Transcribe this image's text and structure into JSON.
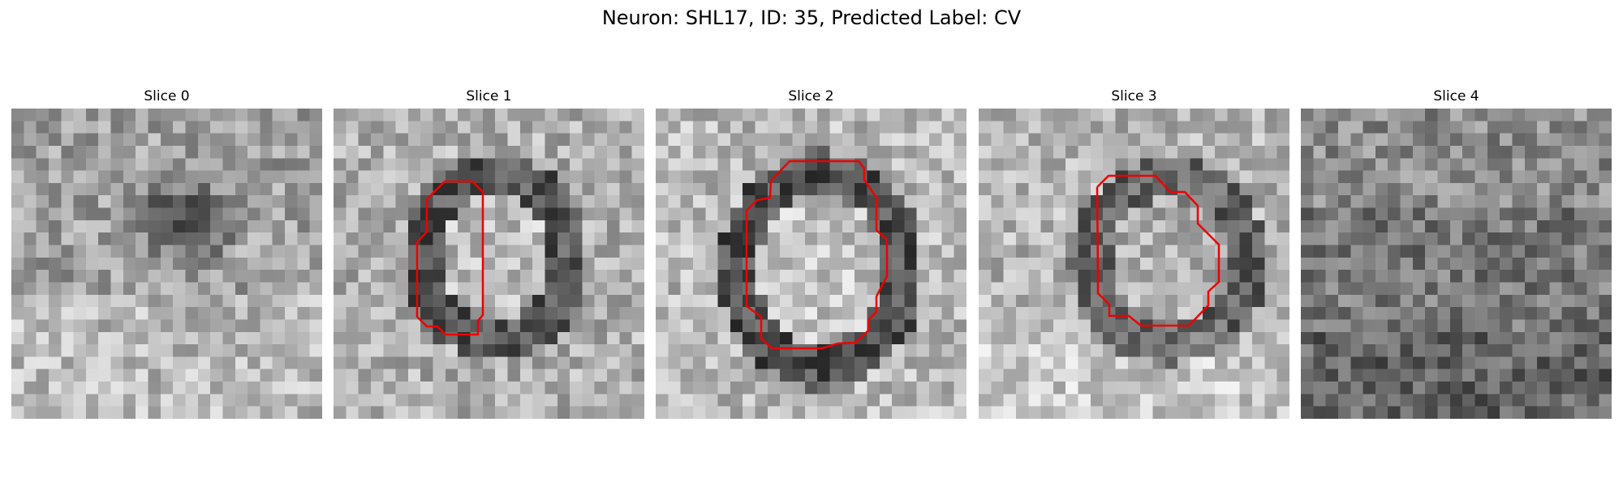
{
  "title": "Neuron: SHL17, ID: 35, Predicted Label: CV",
  "slices": [
    {
      "label": "Slice 0",
      "contour": false
    },
    {
      "label": "Slice 1",
      "contour": true
    },
    {
      "label": "Slice 2",
      "contour": true
    },
    {
      "label": "Slice 3",
      "contour": true
    },
    {
      "label": "Slice 4",
      "contour": false
    }
  ],
  "colors": {
    "contour": "#ee0000",
    "colormap": "gray"
  }
}
